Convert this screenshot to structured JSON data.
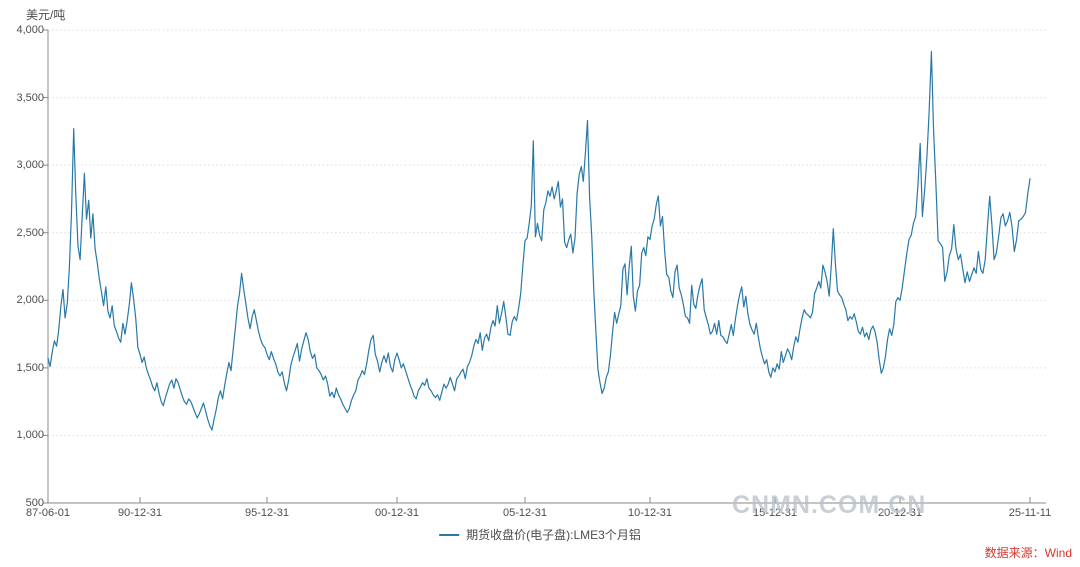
{
  "watermark": {
    "text": "CNMN.COM.CN"
  },
  "source": {
    "text": "数据来源：Wind",
    "color": "#d9342b"
  },
  "chart_data": {
    "type": "line",
    "title": "",
    "unit_label": "美元/吨",
    "series_name": "期货收盘价(电子盘):LME3个月铝",
    "line_color": "#2878a8",
    "ylim": [
      500,
      4000
    ],
    "grid": "horizontal-dotted",
    "legend_position": "bottom-center",
    "y_tick_labels": [
      "4,000",
      "3,500",
      "3,000",
      "2,500",
      "2,000",
      "1,500",
      "1,000",
      "500"
    ],
    "y_tick_values": [
      4000,
      3500,
      3000,
      2500,
      2000,
      1500,
      1000,
      500
    ],
    "x_tick_labels": [
      "87-06-01",
      "90-12-31",
      "95-12-31",
      "00-12-31",
      "05-12-31",
      "10-12-31",
      "15-12-31",
      "20-12-31",
      "25-11-11"
    ],
    "x_tick_month_index": [
      0,
      43,
      103,
      163,
      223,
      283,
      343,
      403,
      461
    ],
    "start": "1987-06",
    "monthly": [
      {
        "year": 1987,
        "values": [
          1570,
          1510,
          1620,
          1700,
          1660,
          1780,
          1950
        ]
      },
      {
        "year": 1988,
        "values": [
          2080,
          1870,
          1980,
          2250,
          2650,
          3270,
          2780,
          2400,
          2300,
          2620,
          2940,
          2600
        ]
      },
      {
        "year": 1989,
        "values": [
          2740,
          2460,
          2640,
          2380,
          2280,
          2160,
          2060,
          1960,
          2100,
          1920,
          1870,
          1960
        ]
      },
      {
        "year": 1990,
        "values": [
          1810,
          1770,
          1720,
          1690,
          1830,
          1750,
          1850,
          1970,
          2130,
          2010,
          1870,
          1650
        ]
      },
      {
        "year": 1991,
        "values": [
          1600,
          1540,
          1580,
          1500,
          1450,
          1410,
          1360,
          1330,
          1390,
          1310,
          1250,
          1220
        ]
      },
      {
        "year": 1992,
        "values": [
          1280,
          1330,
          1380,
          1410,
          1350,
          1420,
          1390,
          1340,
          1290,
          1250,
          1230,
          1270
        ]
      },
      {
        "year": 1993,
        "values": [
          1250,
          1210,
          1170,
          1130,
          1160,
          1200,
          1240,
          1180,
          1120,
          1070,
          1040,
          1120
        ]
      },
      {
        "year": 1994,
        "values": [
          1190,
          1280,
          1330,
          1270,
          1370,
          1460,
          1540,
          1480,
          1630,
          1790,
          1950,
          2050
        ]
      },
      {
        "year": 1995,
        "values": [
          2200,
          2080,
          1980,
          1870,
          1790,
          1880,
          1930,
          1850,
          1770,
          1710,
          1670,
          1650
        ]
      },
      {
        "year": 1996,
        "values": [
          1600,
          1560,
          1620,
          1570,
          1530,
          1470,
          1440,
          1470,
          1390,
          1330,
          1410,
          1520
        ]
      },
      {
        "year": 1997,
        "values": [
          1580,
          1630,
          1680,
          1550,
          1640,
          1700,
          1760,
          1710,
          1620,
          1570,
          1600,
          1500
        ]
      },
      {
        "year": 1998,
        "values": [
          1480,
          1450,
          1410,
          1440,
          1380,
          1290,
          1320,
          1280,
          1350,
          1300,
          1270,
          1230
        ]
      },
      {
        "year": 1999,
        "values": [
          1200,
          1170,
          1200,
          1260,
          1300,
          1330,
          1410,
          1440,
          1480,
          1450,
          1530,
          1630
        ]
      },
      {
        "year": 2000,
        "values": [
          1710,
          1740,
          1600,
          1550,
          1470,
          1540,
          1590,
          1540,
          1610,
          1510,
          1470,
          1560
        ]
      },
      {
        "year": 2001,
        "values": [
          1610,
          1560,
          1500,
          1530,
          1480,
          1430,
          1380,
          1340,
          1290,
          1270,
          1330,
          1360
        ]
      },
      {
        "year": 2002,
        "values": [
          1390,
          1370,
          1420,
          1350,
          1330,
          1300,
          1280,
          1300,
          1260,
          1320,
          1380,
          1350
        ]
      },
      {
        "year": 2003,
        "values": [
          1380,
          1430,
          1380,
          1330,
          1420,
          1440,
          1470,
          1490,
          1420,
          1510,
          1540,
          1590
        ]
      },
      {
        "year": 2004,
        "values": [
          1660,
          1710,
          1680,
          1760,
          1630,
          1720,
          1750,
          1700,
          1800,
          1850,
          1810,
          1960
        ]
      },
      {
        "year": 2005,
        "values": [
          1830,
          1900,
          1990,
          1880,
          1750,
          1740,
          1840,
          1880,
          1850,
          1940,
          2050,
          2260
        ]
      },
      {
        "year": 2006,
        "values": [
          2440,
          2460,
          2570,
          2700,
          3180,
          2470,
          2570,
          2480,
          2440,
          2670,
          2720,
          2810
        ]
      },
      {
        "year": 2007,
        "values": [
          2770,
          2840,
          2750,
          2810,
          2880,
          2690,
          2750,
          2430,
          2390,
          2450,
          2490,
          2350
        ]
      },
      {
        "year": 2008,
        "values": [
          2460,
          2790,
          2930,
          2990,
          2880,
          3090,
          3330,
          2760,
          2480,
          2070,
          1780,
          1490
        ]
      },
      {
        "year": 2009,
        "values": [
          1390,
          1310,
          1350,
          1430,
          1470,
          1590,
          1760,
          1910,
          1830,
          1900,
          1960,
          2230
        ]
      },
      {
        "year": 2010,
        "values": [
          2270,
          2040,
          2250,
          2400,
          2030,
          1920,
          2070,
          2110,
          2350,
          2390,
          2330,
          2470
        ]
      },
      {
        "year": 2011,
        "values": [
          2450,
          2550,
          2600,
          2710,
          2772,
          2550,
          2620,
          2370,
          2190,
          2170,
          2070,
          2020
        ]
      },
      {
        "year": 2012,
        "values": [
          2210,
          2260,
          2090,
          2040,
          1970,
          1880,
          1870,
          1830,
          2110,
          1970,
          1940,
          2040
        ]
      },
      {
        "year": 2013,
        "values": [
          2110,
          2160,
          1930,
          1870,
          1820,
          1750,
          1770,
          1830,
          1750,
          1850,
          1740,
          1730
        ]
      },
      {
        "year": 2014,
        "values": [
          1700,
          1680,
          1750,
          1820,
          1740,
          1860,
          1960,
          2040,
          2100,
          1950,
          2030,
          1900
        ]
      },
      {
        "year": 2015,
        "values": [
          1820,
          1780,
          1750,
          1830,
          1730,
          1640,
          1580,
          1530,
          1560,
          1470,
          1430,
          1500
        ]
      },
      {
        "year": 2016,
        "values": [
          1470,
          1530,
          1490,
          1620,
          1540,
          1590,
          1640,
          1610,
          1560,
          1660,
          1730,
          1690
        ]
      },
      {
        "year": 2017,
        "values": [
          1790,
          1870,
          1930,
          1900,
          1890,
          1870,
          1910,
          2050,
          2090,
          2140,
          2090,
          2260
        ]
      },
      {
        "year": 2018,
        "values": [
          2210,
          2140,
          2030,
          2260,
          2530,
          2270,
          2070,
          2040,
          2020,
          1970,
          1930,
          1850
        ]
      },
      {
        "year": 2019,
        "values": [
          1880,
          1860,
          1900,
          1840,
          1770,
          1750,
          1800,
          1730,
          1760,
          1710,
          1780,
          1810
        ]
      },
      {
        "year": 2020,
        "values": [
          1770,
          1690,
          1560,
          1460,
          1500,
          1580,
          1710,
          1790,
          1740,
          1820,
          1990,
          2020
        ]
      },
      {
        "year": 2021,
        "values": [
          2000,
          2090,
          2220,
          2340,
          2450,
          2480,
          2570,
          2620,
          2850,
          3160,
          2620,
          2820
        ]
      },
      {
        "year": 2022,
        "values": [
          3060,
          3390,
          3840,
          3250,
          2860,
          2440,
          2420,
          2390,
          2140,
          2210,
          2330,
          2380
        ]
      },
      {
        "year": 2023,
        "values": [
          2560,
          2380,
          2300,
          2340,
          2230,
          2130,
          2210,
          2140,
          2190,
          2240,
          2200,
          2360
        ]
      },
      {
        "year": 2024,
        "values": [
          2230,
          2200,
          2300,
          2540,
          2770,
          2560,
          2300,
          2350,
          2470,
          2610,
          2640,
          2550
        ]
      },
      {
        "year": 2025,
        "values": [
          2590,
          2650,
          2540,
          2360,
          2450,
          2590,
          2600,
          2620,
          2650,
          2790,
          2900
        ]
      }
    ]
  }
}
